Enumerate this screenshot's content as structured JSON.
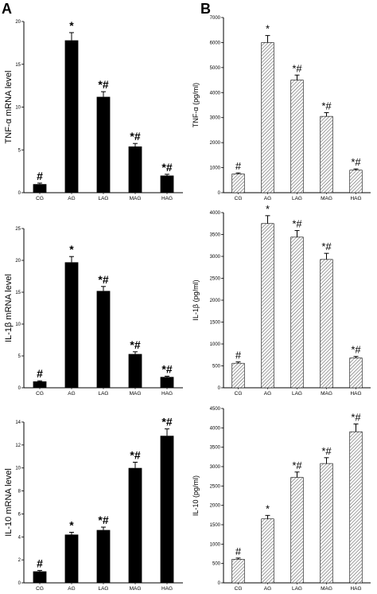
{
  "panel_labels": [
    "A",
    "B"
  ],
  "chart_data": [
    {
      "type": "bar",
      "style": "solid",
      "ylabel": "TNF-α  mRNA  level",
      "ylim": [
        0,
        20
      ],
      "yticks": [
        0,
        5,
        10,
        15,
        20
      ],
      "categories": [
        "CG",
        "AG",
        "LAG",
        "MAG",
        "HAG"
      ],
      "values": [
        1,
        17.8,
        11.2,
        5.4,
        2.0
      ],
      "errors": [
        0.12,
        0.9,
        0.6,
        0.35,
        0.15
      ],
      "annotations": [
        "#",
        "*",
        "*#",
        "*#",
        "*#"
      ]
    },
    {
      "type": "bar",
      "style": "solid",
      "ylabel": "IL-1β  mRNA  level",
      "ylim": [
        0,
        25
      ],
      "yticks": [
        0,
        5,
        10,
        15,
        20,
        25
      ],
      "categories": [
        "CG",
        "AG",
        "LAG",
        "MAG",
        "HAG"
      ],
      "values": [
        1,
        19.7,
        15.2,
        5.3,
        1.7
      ],
      "errors": [
        0.1,
        0.9,
        0.7,
        0.35,
        0.12
      ],
      "annotations": [
        "#",
        "*",
        "*#",
        "*#",
        "*#"
      ]
    },
    {
      "type": "bar",
      "style": "solid",
      "ylabel": "IL-10  mRNA  level",
      "ylim": [
        0,
        14
      ],
      "yticks": [
        0,
        2,
        4,
        6,
        8,
        10,
        12,
        14
      ],
      "categories": [
        "CG",
        "AG",
        "LAG",
        "MAG",
        "HAG"
      ],
      "values": [
        1,
        4.2,
        4.6,
        10.0,
        12.8
      ],
      "errors": [
        0.08,
        0.2,
        0.25,
        0.5,
        0.6
      ],
      "annotations": [
        "#",
        "*",
        "*#",
        "*#",
        "*#"
      ]
    },
    {
      "type": "bar",
      "style": "hatched",
      "ylabel": "TNF-α (pg/ml)",
      "ylim": [
        0,
        7000
      ],
      "yticks": [
        0,
        1000,
        2000,
        3000,
        4000,
        5000,
        6000,
        7000
      ],
      "categories": [
        "CG",
        "AG",
        "LAG",
        "MAG",
        "HAG"
      ],
      "values": [
        750,
        6000,
        4500,
        3050,
        900
      ],
      "errors": [
        40,
        280,
        200,
        150,
        50
      ],
      "annotations": [
        "#",
        "*",
        "*#",
        "*#",
        "*#"
      ]
    },
    {
      "type": "bar",
      "style": "hatched",
      "ylabel": "IL-1β (pg/ml)",
      "ylim": [
        0,
        4000
      ],
      "yticks": [
        0,
        500,
        1000,
        1500,
        2000,
        2500,
        3000,
        3500,
        4000
      ],
      "categories": [
        "CG",
        "AG",
        "LAG",
        "MAG",
        "HAG"
      ],
      "values": [
        560,
        3750,
        3440,
        2930,
        680
      ],
      "errors": [
        30,
        180,
        150,
        140,
        35
      ],
      "annotations": [
        "#",
        "*",
        "*#",
        "*#",
        "*#"
      ]
    },
    {
      "type": "bar",
      "style": "hatched",
      "ylabel": "IL-10 (pg/ml)",
      "ylim": [
        0,
        4500
      ],
      "yticks": [
        0,
        500,
        1000,
        1500,
        2000,
        2500,
        3000,
        3500,
        4000,
        4500
      ],
      "categories": [
        "CG",
        "AG",
        "LAG",
        "MAG",
        "HAG"
      ],
      "values": [
        610,
        1650,
        2720,
        3080,
        3900
      ],
      "errors": [
        30,
        90,
        140,
        150,
        200
      ],
      "annotations": [
        "#",
        "*",
        "*#",
        "*#",
        "*#"
      ]
    }
  ]
}
